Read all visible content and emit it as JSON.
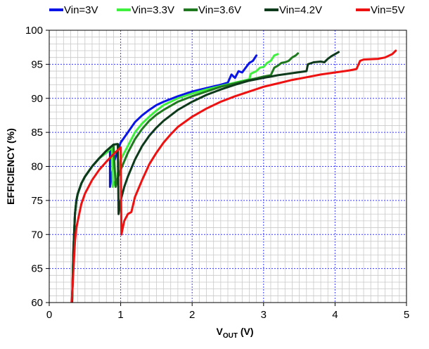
{
  "chart_data": {
    "type": "line",
    "xlabel_main": "V",
    "xlabel_sub": "OUT",
    "xlabel_unit": " (V)",
    "ylabel": "EFFICIENCY (%)",
    "xlim": [
      0,
      5
    ],
    "ylim": [
      60,
      100
    ],
    "xticks": [
      0,
      1,
      2,
      3,
      4,
      5
    ],
    "yticks": [
      60,
      65,
      70,
      75,
      80,
      85,
      90,
      95,
      100
    ],
    "grid": true,
    "legend_position": "top",
    "series": [
      {
        "name": "Vin=3V",
        "color": "#0a14e6",
        "x": [
          0.32,
          0.34,
          0.36,
          0.38,
          0.4,
          0.45,
          0.5,
          0.6,
          0.7,
          0.8,
          0.85,
          0.85,
          0.9,
          1.0,
          1.1,
          1.2,
          1.3,
          1.4,
          1.5,
          1.6,
          1.8,
          2.0,
          2.2,
          2.4,
          2.5,
          2.55,
          2.6,
          2.65,
          2.7,
          2.75,
          2.8,
          2.85,
          2.9
        ],
        "y": [
          60,
          68,
          73,
          75,
          76,
          77.5,
          78.5,
          80,
          81.2,
          82,
          82.5,
          77,
          80.5,
          83.5,
          85,
          86.5,
          87.5,
          88.3,
          89,
          89.5,
          90.3,
          91,
          91.5,
          92,
          92.3,
          93.5,
          93,
          94,
          93.8,
          94.5,
          95.2,
          95.5,
          96.3
        ]
      },
      {
        "name": "Vin=3.3V",
        "color": "#3ff03f",
        "x": [
          0.32,
          0.34,
          0.36,
          0.38,
          0.4,
          0.45,
          0.5,
          0.6,
          0.7,
          0.8,
          0.88,
          0.89,
          0.95,
          1.0,
          1.1,
          1.2,
          1.3,
          1.4,
          1.5,
          1.6,
          1.8,
          2.0,
          2.2,
          2.4,
          2.6,
          2.8,
          2.82,
          2.9,
          2.95,
          3.0,
          3.05,
          3.1,
          3.15,
          3.2
        ],
        "y": [
          60,
          68,
          73,
          75,
          76,
          77.5,
          78.5,
          80,
          81.2,
          82,
          82.8,
          77,
          78.5,
          81,
          83,
          85,
          86.3,
          87.3,
          88.2,
          89,
          90,
          90.7,
          91.3,
          91.8,
          92.3,
          92.8,
          93.6,
          94,
          94.5,
          94.6,
          95.2,
          95.5,
          96.3,
          96.5
        ]
      },
      {
        "name": "Vin=3.6V",
        "color": "#1f7a1f",
        "x": [
          0.32,
          0.34,
          0.36,
          0.38,
          0.4,
          0.45,
          0.5,
          0.6,
          0.7,
          0.8,
          0.9,
          0.93,
          0.95,
          1.0,
          1.1,
          1.2,
          1.3,
          1.4,
          1.5,
          1.6,
          1.8,
          2.0,
          2.2,
          2.4,
          2.6,
          2.8,
          3.0,
          3.1,
          3.15,
          3.2,
          3.25,
          3.3,
          3.35,
          3.4,
          3.45,
          3.48
        ],
        "y": [
          60,
          68,
          73,
          75,
          76,
          77.5,
          78.5,
          80,
          81.2,
          82.3,
          83.2,
          77,
          78,
          79.5,
          82,
          84,
          85.5,
          86.7,
          87.6,
          88.3,
          89.5,
          90.3,
          91,
          91.7,
          92.2,
          92.7,
          93.2,
          93.4,
          94.5,
          94.8,
          95.2,
          95.3,
          95.5,
          96,
          96.3,
          96.6
        ]
      },
      {
        "name": "Vin=4.2V",
        "color": "#0d3a1a",
        "x": [
          0.32,
          0.34,
          0.36,
          0.38,
          0.4,
          0.45,
          0.5,
          0.6,
          0.7,
          0.8,
          0.9,
          0.96,
          0.97,
          1.0,
          1.05,
          1.1,
          1.2,
          1.3,
          1.4,
          1.5,
          1.6,
          1.8,
          2.0,
          2.2,
          2.4,
          2.6,
          2.8,
          3.0,
          3.2,
          3.4,
          3.6,
          3.62,
          3.7,
          3.8,
          3.85,
          3.9,
          3.95,
          4.0,
          4.05
        ],
        "y": [
          60,
          68,
          73,
          75,
          76,
          77.5,
          78.5,
          80,
          81.2,
          82.3,
          83.2,
          83.3,
          73,
          75,
          77,
          78.5,
          81,
          83,
          84.5,
          85.7,
          86.7,
          88.3,
          89.5,
          90.5,
          91.3,
          92,
          92.6,
          93,
          93.4,
          93.7,
          94,
          95,
          95.3,
          95.4,
          95.3,
          95.8,
          96.2,
          96.5,
          96.8
        ]
      },
      {
        "name": "Vin=5V",
        "color": "#ee1111",
        "x": [
          0.3,
          0.32,
          0.34,
          0.36,
          0.38,
          0.4,
          0.45,
          0.5,
          0.6,
          0.7,
          0.8,
          0.9,
          1.0,
          1.01,
          1.05,
          1.1,
          1.15,
          1.2,
          1.3,
          1.4,
          1.5,
          1.6,
          1.7,
          1.8,
          2.0,
          2.2,
          2.4,
          2.6,
          2.8,
          3.0,
          3.2,
          3.4,
          3.6,
          3.8,
          4.0,
          4.2,
          4.3,
          4.35,
          4.4,
          4.6,
          4.7,
          4.8,
          4.85
        ],
        "y": [
          58,
          61,
          65,
          69,
          71,
          72,
          74.5,
          76,
          78,
          79.5,
          80.7,
          81.8,
          82.8,
          70,
          72,
          73,
          73.3,
          75.5,
          78,
          80.3,
          82,
          83.5,
          84.7,
          85.8,
          87.3,
          88.5,
          89.5,
          90.3,
          91,
          91.7,
          92.2,
          92.7,
          93.1,
          93.5,
          93.8,
          94.1,
          94.3,
          95.5,
          95.7,
          95.8,
          96,
          96.5,
          97
        ]
      }
    ]
  }
}
